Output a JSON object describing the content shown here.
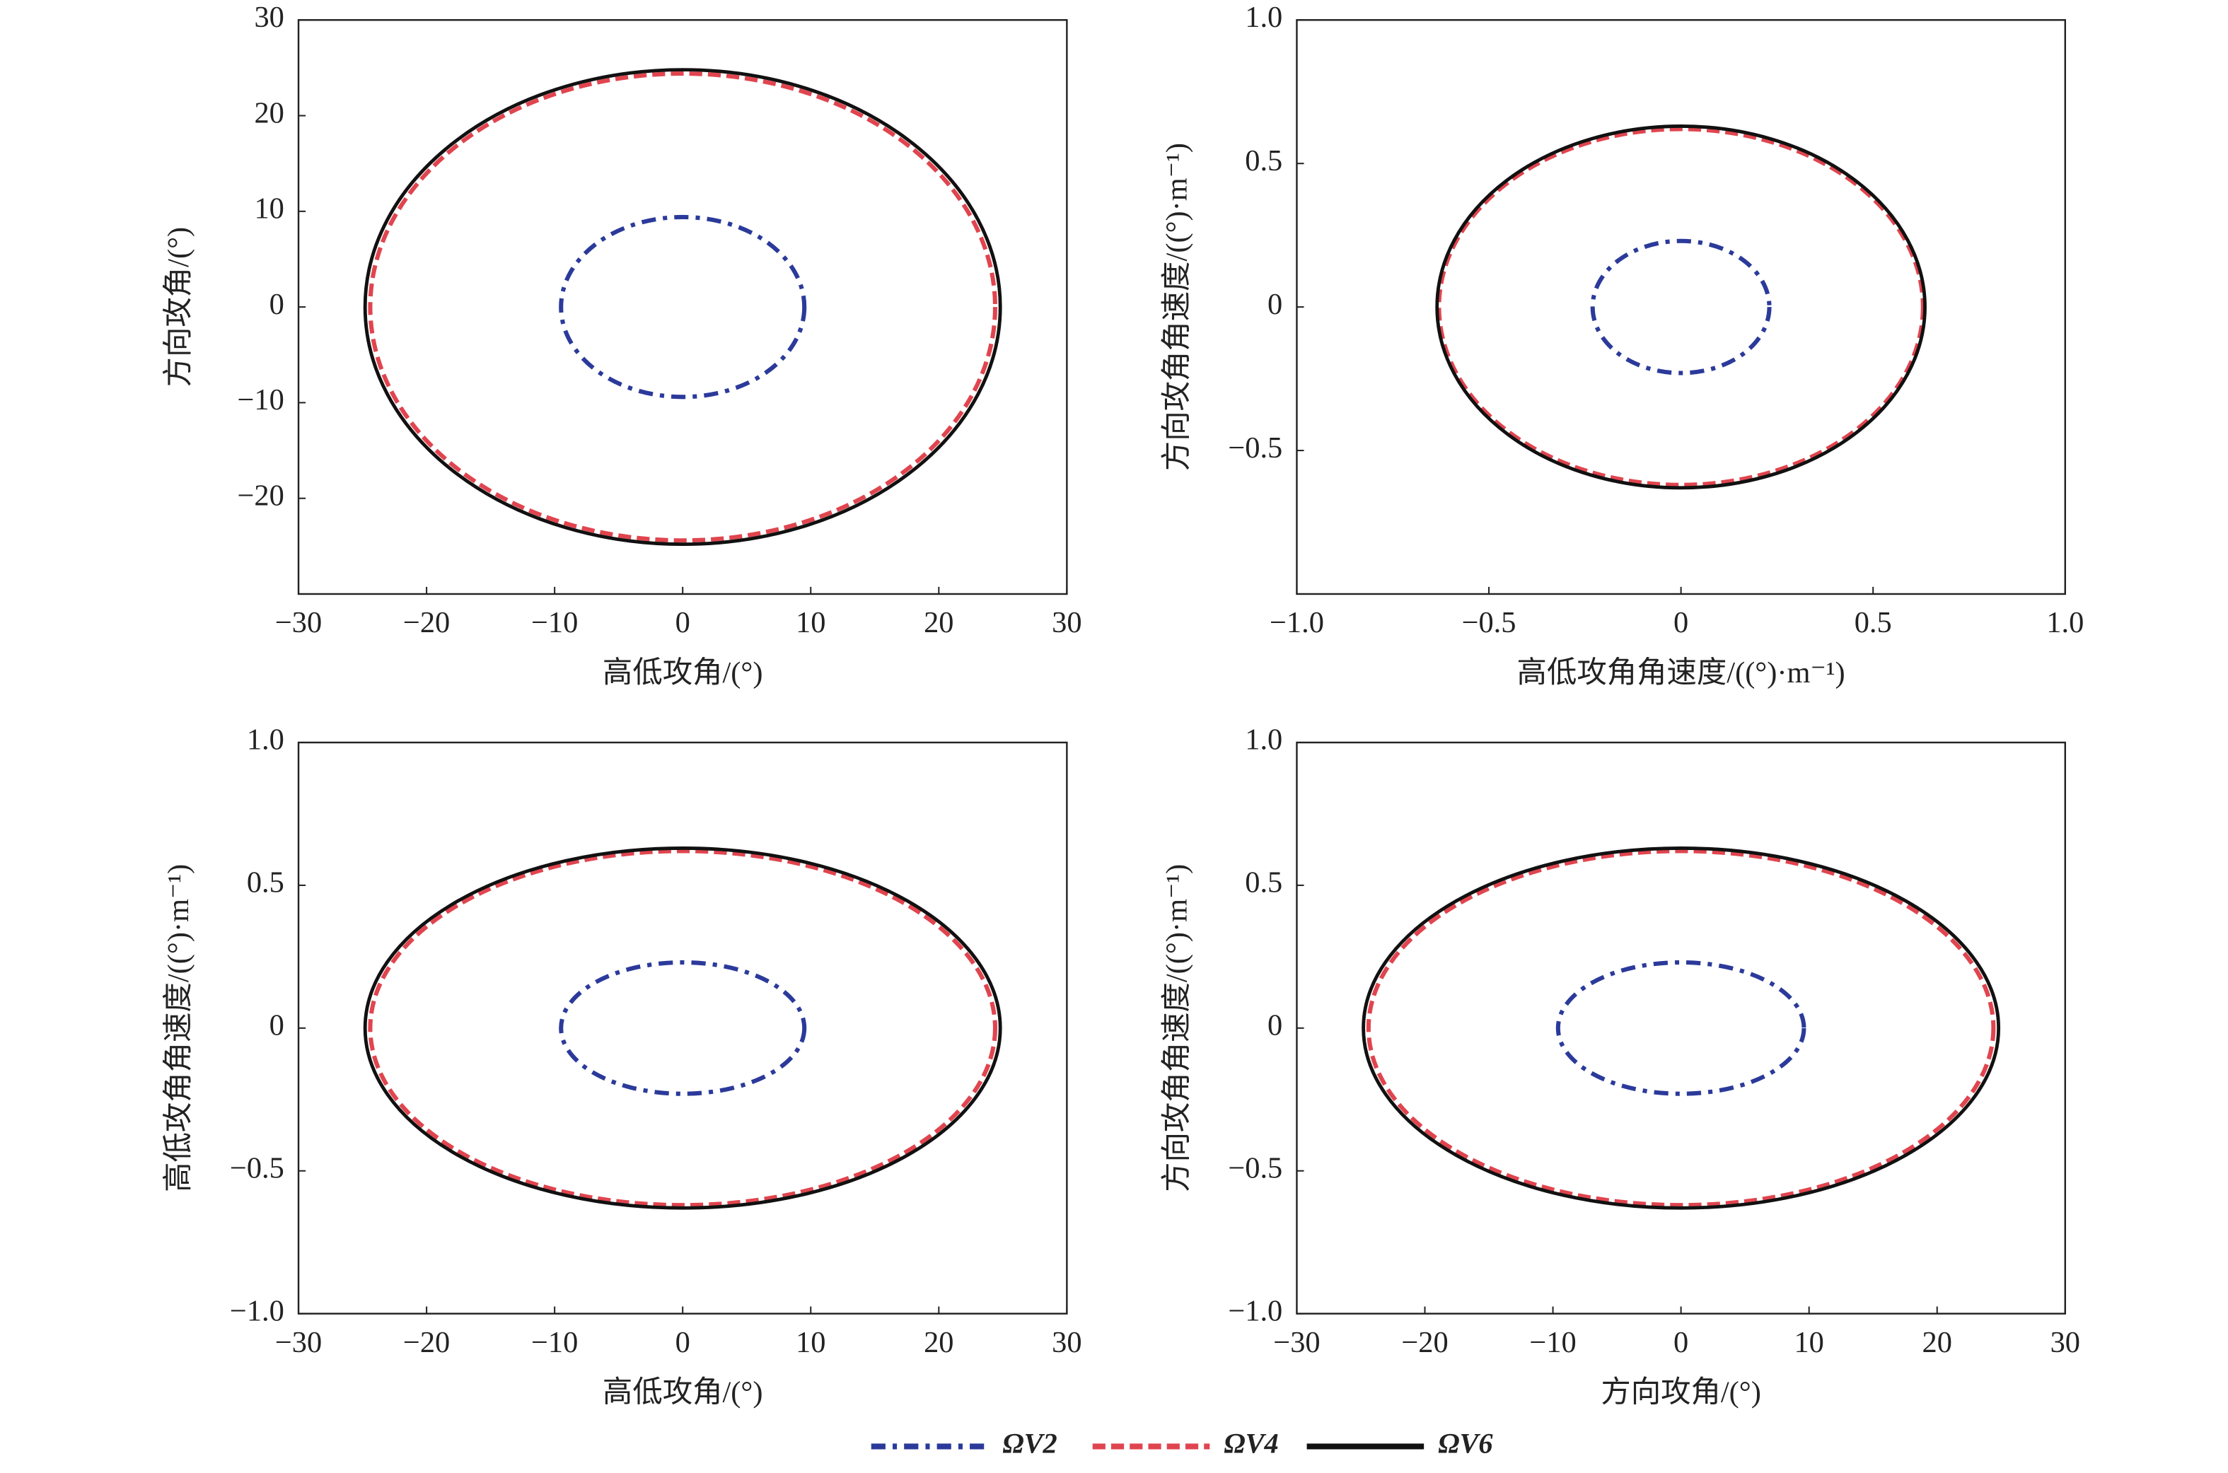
{
  "chart_data": [
    {
      "type": "ellipse",
      "xlabel": "高低攻角/(°)",
      "ylabel": "方向攻角/(°)",
      "xlim": [
        -30,
        30
      ],
      "ylim": [
        -30,
        30
      ],
      "xticks": [
        {
          "value": -30,
          "label": "−30"
        },
        {
          "value": -20,
          "label": "−20"
        },
        {
          "value": -10,
          "label": "−10"
        },
        0,
        10,
        20,
        30
      ],
      "yticks": [
        {
          "value": -20,
          "label": "−20"
        },
        {
          "value": -10,
          "label": "−10"
        },
        0,
        10,
        20,
        30
      ],
      "series": [
        {
          "name": "ΩV2",
          "color": "#2b3a9a",
          "linestyle": "dashdot",
          "rx": 9.5,
          "ry": 9.4
        },
        {
          "name": "ΩV4",
          "color": "#e0454f",
          "linestyle": "dashed",
          "rx": 24.4,
          "ry": 24.4
        },
        {
          "name": "ΩV6",
          "color": "#111111",
          "linestyle": "solid",
          "rx": 24.8,
          "ry": 24.8
        }
      ]
    },
    {
      "type": "ellipse",
      "xlabel": "高低攻角角速度/((°)·m⁻¹)",
      "ylabel": "方向攻角角速度/((°)·m⁻¹)",
      "xlim": [
        -1,
        1
      ],
      "ylim": [
        -1,
        1
      ],
      "xticks": [
        {
          "value": -1,
          "label": "−1.0"
        },
        {
          "value": -0.5,
          "label": "−0.5"
        },
        0,
        0.5,
        {
          "value": 1,
          "label": "1.0"
        }
      ],
      "yticks": [
        {
          "value": -0.5,
          "label": "−0.5"
        },
        0,
        0.5,
        {
          "value": 1,
          "label": "1.0"
        }
      ],
      "series": [
        {
          "color": "#2b3a9a",
          "linestyle": "dashdot",
          "rx": 0.23,
          "ry": 0.23
        },
        {
          "color": "#e0454f",
          "linestyle": "dashed",
          "rx": 0.63,
          "ry": 0.62
        },
        {
          "color": "#111111",
          "linestyle": "solid",
          "rx": 0.635,
          "ry": 0.63
        }
      ]
    },
    {
      "type": "ellipse",
      "xlabel": "高低攻角/(°)",
      "ylabel": "高低攻角角速度/((°)·m⁻¹)",
      "xlim": [
        -30,
        30
      ],
      "ylim": [
        -1,
        1
      ],
      "xticks": [
        {
          "value": -30,
          "label": "−30"
        },
        {
          "value": -20,
          "label": "−20"
        },
        {
          "value": -10,
          "label": "−10"
        },
        0,
        10,
        20,
        30
      ],
      "yticks": [
        {
          "value": -1,
          "label": "−1.0"
        },
        {
          "value": -0.5,
          "label": "−0.5"
        },
        0,
        0.5,
        {
          "value": 1,
          "label": "1.0"
        }
      ],
      "series": [
        {
          "color": "#2b3a9a",
          "linestyle": "dashdot",
          "rx": 9.5,
          "ry": 0.23
        },
        {
          "color": "#e0454f",
          "linestyle": "dashed",
          "rx": 24.4,
          "ry": 0.62
        },
        {
          "color": "#111111",
          "linestyle": "solid",
          "rx": 24.8,
          "ry": 0.63
        }
      ]
    },
    {
      "type": "ellipse",
      "xlabel": "方向攻角/(°)",
      "ylabel": "方向攻角角速度/((°)·m⁻¹)",
      "xlim": [
        -30,
        30
      ],
      "ylim": [
        -1,
        1
      ],
      "xticks": [
        {
          "value": -30,
          "label": "−30"
        },
        {
          "value": -20,
          "label": "−20"
        },
        {
          "value": -10,
          "label": "−10"
        },
        0,
        10,
        20,
        30
      ],
      "yticks": [
        {
          "value": -1,
          "label": "−1.0"
        },
        {
          "value": -0.5,
          "label": "−0.5"
        },
        0,
        0.5,
        {
          "value": 1,
          "label": "1.0"
        }
      ],
      "series": [
        {
          "color": "#2b3a9a",
          "linestyle": "dashdot",
          "rx": 9.6,
          "ry": 0.23
        },
        {
          "color": "#e0454f",
          "linestyle": "dashed",
          "rx": 24.4,
          "ry": 0.62
        },
        {
          "color": "#111111",
          "linestyle": "solid",
          "rx": 24.8,
          "ry": 0.63
        }
      ]
    }
  ]
}
